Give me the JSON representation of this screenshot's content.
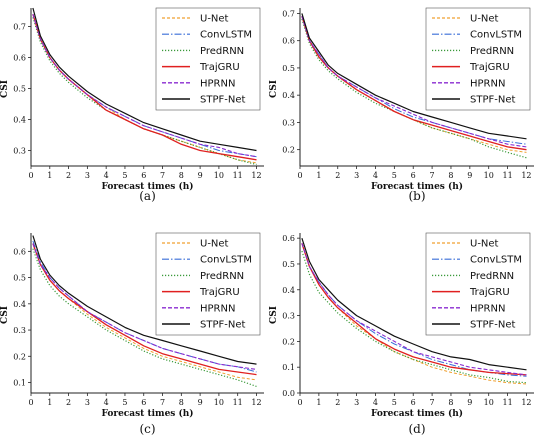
{
  "colors": {
    "U-Net": "#f0a030",
    "ConvLSTM": "#3a6fd8",
    "PredRNN": "#3a9a3a",
    "TrajGRU": "#e02020",
    "HPRNN": "#8a2bd0",
    "STPF-Net": "#111111"
  },
  "chart_data": [
    {
      "type": "line",
      "caption": "(a)",
      "xlabel": "Forecast times (h)",
      "ylabel": "CSI",
      "xlim": [
        0,
        12.4
      ],
      "ylim": [
        0.25,
        0.76
      ],
      "xticks": [
        0,
        1,
        2,
        3,
        4,
        5,
        6,
        7,
        8,
        9,
        10,
        11,
        12
      ],
      "yticks": [
        0.3,
        0.4,
        0.5,
        0.6,
        0.7
      ],
      "x": [
        0.1,
        0.5,
        1,
        1.5,
        2,
        3,
        4,
        5,
        6,
        7,
        8,
        9,
        10,
        11,
        12
      ],
      "series": [
        {
          "name": "U-Net",
          "values": [
            0.74,
            0.66,
            0.6,
            0.56,
            0.53,
            0.48,
            0.44,
            0.4,
            0.37,
            0.35,
            0.33,
            0.31,
            0.29,
            0.27,
            0.26
          ]
        },
        {
          "name": "ConvLSTM",
          "values": [
            0.74,
            0.66,
            0.6,
            0.56,
            0.53,
            0.48,
            0.44,
            0.41,
            0.38,
            0.36,
            0.34,
            0.32,
            0.3,
            0.29,
            0.28
          ]
        },
        {
          "name": "PredRNN",
          "values": [
            0.73,
            0.65,
            0.59,
            0.55,
            0.52,
            0.47,
            0.43,
            0.4,
            0.37,
            0.35,
            0.33,
            0.31,
            0.29,
            0.27,
            0.255
          ]
        },
        {
          "name": "TrajGRU",
          "values": [
            0.74,
            0.66,
            0.6,
            0.56,
            0.53,
            0.48,
            0.43,
            0.4,
            0.37,
            0.35,
            0.32,
            0.3,
            0.29,
            0.28,
            0.27
          ]
        },
        {
          "name": "HPRNN",
          "values": [
            0.74,
            0.66,
            0.6,
            0.56,
            0.53,
            0.48,
            0.44,
            0.41,
            0.38,
            0.36,
            0.34,
            0.32,
            0.31,
            0.29,
            0.28
          ]
        },
        {
          "name": "STPF-Net",
          "values": [
            0.76,
            0.67,
            0.61,
            0.57,
            0.54,
            0.49,
            0.45,
            0.42,
            0.39,
            0.37,
            0.35,
            0.33,
            0.32,
            0.31,
            0.3
          ]
        }
      ],
      "legend": "top-right"
    },
    {
      "type": "line",
      "caption": "(b)",
      "xlabel": "Forecast times (h)",
      "ylabel": "CSI",
      "xlim": [
        0,
        12.4
      ],
      "ylim": [
        0.14,
        0.72
      ],
      "xticks": [
        0,
        1,
        2,
        3,
        4,
        5,
        6,
        7,
        8,
        9,
        10,
        11,
        12
      ],
      "yticks": [
        0.2,
        0.3,
        0.4,
        0.5,
        0.6,
        0.7
      ],
      "x": [
        0.1,
        0.5,
        1,
        1.5,
        2,
        3,
        4,
        5,
        6,
        7,
        8,
        9,
        10,
        11,
        12
      ],
      "series": [
        {
          "name": "U-Net",
          "values": [
            0.69,
            0.6,
            0.54,
            0.5,
            0.47,
            0.42,
            0.38,
            0.34,
            0.31,
            0.28,
            0.26,
            0.24,
            0.22,
            0.2,
            0.19
          ]
        },
        {
          "name": "ConvLSTM",
          "values": [
            0.69,
            0.6,
            0.55,
            0.5,
            0.47,
            0.43,
            0.39,
            0.35,
            0.32,
            0.3,
            0.28,
            0.26,
            0.24,
            0.23,
            0.22
          ]
        },
        {
          "name": "PredRNN",
          "values": [
            0.68,
            0.59,
            0.53,
            0.49,
            0.46,
            0.41,
            0.37,
            0.34,
            0.31,
            0.28,
            0.26,
            0.24,
            0.21,
            0.19,
            0.17
          ]
        },
        {
          "name": "TrajGRU",
          "values": [
            0.69,
            0.6,
            0.54,
            0.5,
            0.47,
            0.42,
            0.38,
            0.34,
            0.31,
            0.29,
            0.27,
            0.25,
            0.23,
            0.21,
            0.2
          ]
        },
        {
          "name": "HPRNN",
          "values": [
            0.69,
            0.6,
            0.55,
            0.5,
            0.47,
            0.43,
            0.39,
            0.36,
            0.33,
            0.3,
            0.28,
            0.26,
            0.24,
            0.22,
            0.21
          ]
        },
        {
          "name": "STPF-Net",
          "values": [
            0.7,
            0.61,
            0.56,
            0.51,
            0.48,
            0.44,
            0.4,
            0.37,
            0.34,
            0.32,
            0.3,
            0.28,
            0.26,
            0.25,
            0.24
          ]
        }
      ],
      "legend": "top-right"
    },
    {
      "type": "line",
      "caption": "(c)",
      "xlabel": "Forecast times (h)",
      "ylabel": "CSI",
      "xlim": [
        0,
        12.4
      ],
      "ylim": [
        0.06,
        0.67
      ],
      "xticks": [
        0,
        1,
        2,
        3,
        4,
        5,
        6,
        7,
        8,
        9,
        10,
        11,
        12
      ],
      "yticks": [
        0.1,
        0.2,
        0.3,
        0.4,
        0.5,
        0.6
      ],
      "x": [
        0.1,
        0.5,
        1,
        1.5,
        2,
        3,
        4,
        5,
        6,
        7,
        8,
        9,
        10,
        11,
        12
      ],
      "series": [
        {
          "name": "U-Net",
          "values": [
            0.63,
            0.55,
            0.49,
            0.45,
            0.42,
            0.36,
            0.31,
            0.27,
            0.23,
            0.2,
            0.18,
            0.16,
            0.14,
            0.12,
            0.11
          ]
        },
        {
          "name": "ConvLSTM",
          "values": [
            0.64,
            0.56,
            0.5,
            0.46,
            0.43,
            0.37,
            0.33,
            0.29,
            0.26,
            0.23,
            0.21,
            0.19,
            0.17,
            0.16,
            0.14
          ]
        },
        {
          "name": "PredRNN",
          "values": [
            0.61,
            0.53,
            0.47,
            0.43,
            0.4,
            0.35,
            0.3,
            0.26,
            0.22,
            0.19,
            0.17,
            0.15,
            0.13,
            0.11,
            0.085
          ]
        },
        {
          "name": "TrajGRU",
          "values": [
            0.63,
            0.55,
            0.49,
            0.45,
            0.42,
            0.37,
            0.32,
            0.28,
            0.24,
            0.21,
            0.19,
            0.17,
            0.15,
            0.14,
            0.13
          ]
        },
        {
          "name": "HPRNN",
          "values": [
            0.63,
            0.55,
            0.5,
            0.46,
            0.43,
            0.37,
            0.33,
            0.29,
            0.26,
            0.23,
            0.21,
            0.19,
            0.17,
            0.16,
            0.15
          ]
        },
        {
          "name": "STPF-Net",
          "values": [
            0.66,
            0.57,
            0.51,
            0.47,
            0.44,
            0.39,
            0.35,
            0.31,
            0.28,
            0.26,
            0.24,
            0.22,
            0.2,
            0.18,
            0.17
          ]
        }
      ],
      "legend": "top-right"
    },
    {
      "type": "line",
      "caption": "(d)",
      "xlabel": "Forecast times (h)",
      "ylabel": "CSI",
      "xlim": [
        0,
        12.4
      ],
      "ylim": [
        0.0,
        0.62
      ],
      "xticks": [
        0,
        1,
        2,
        3,
        4,
        5,
        6,
        7,
        8,
        9,
        10,
        11,
        12
      ],
      "yticks": [
        0.0,
        0.1,
        0.2,
        0.3,
        0.4,
        0.5,
        0.6
      ],
      "x": [
        0.1,
        0.5,
        1,
        1.5,
        2,
        3,
        4,
        5,
        6,
        7,
        8,
        9,
        10,
        11,
        12
      ],
      "series": [
        {
          "name": "U-Net",
          "values": [
            0.58,
            0.49,
            0.42,
            0.37,
            0.33,
            0.26,
            0.21,
            0.16,
            0.13,
            0.1,
            0.08,
            0.065,
            0.05,
            0.04,
            0.035
          ]
        },
        {
          "name": "ConvLSTM",
          "values": [
            0.58,
            0.49,
            0.43,
            0.38,
            0.34,
            0.28,
            0.23,
            0.19,
            0.16,
            0.13,
            0.11,
            0.09,
            0.08,
            0.07,
            0.065
          ]
        },
        {
          "name": "PredRNN",
          "values": [
            0.55,
            0.46,
            0.39,
            0.35,
            0.31,
            0.25,
            0.2,
            0.16,
            0.13,
            0.11,
            0.09,
            0.07,
            0.06,
            0.045,
            0.04
          ]
        },
        {
          "name": "TrajGRU",
          "values": [
            0.58,
            0.49,
            0.42,
            0.37,
            0.33,
            0.27,
            0.21,
            0.17,
            0.14,
            0.12,
            0.1,
            0.09,
            0.08,
            0.075,
            0.07
          ]
        },
        {
          "name": "HPRNN",
          "values": [
            0.58,
            0.49,
            0.43,
            0.38,
            0.34,
            0.28,
            0.24,
            0.2,
            0.16,
            0.14,
            0.12,
            0.1,
            0.09,
            0.08,
            0.07
          ]
        },
        {
          "name": "STPF-Net",
          "values": [
            0.6,
            0.51,
            0.44,
            0.4,
            0.36,
            0.3,
            0.26,
            0.22,
            0.19,
            0.16,
            0.14,
            0.13,
            0.11,
            0.1,
            0.09
          ]
        }
      ],
      "legend": "top-right"
    }
  ]
}
